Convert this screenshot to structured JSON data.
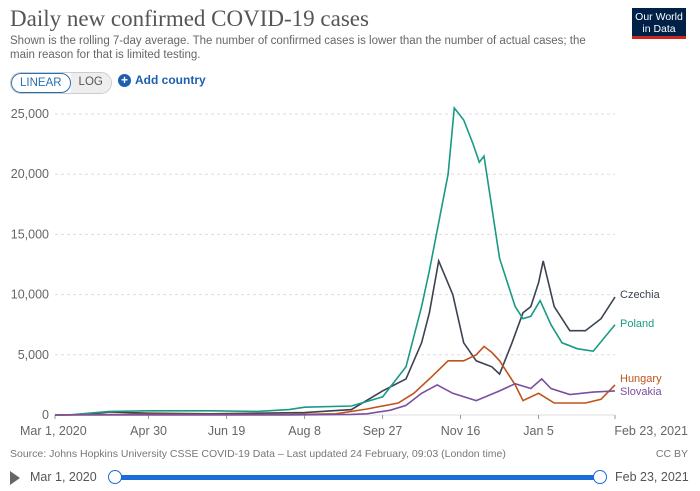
{
  "header": {
    "title": "Daily new confirmed COVID-19 cases",
    "subtitle": "Shown is the rolling 7-day average. The number of confirmed cases is lower than the number of actual cases; the main reason for that is limited testing.",
    "logo": "Our World in Data"
  },
  "controls": {
    "linear": "LINEAR",
    "log": "LOG",
    "add_country": "Add country"
  },
  "footer": {
    "source": "Source: Johns Hopkins University CSSE COVID-19 Data – Last updated 24 February, 09:03 (London time)",
    "license": "CC BY"
  },
  "timeline": {
    "start": "Mar 1, 2020",
    "end": "Feb 23, 2021"
  },
  "chart_data": {
    "type": "line",
    "title": "Daily new confirmed COVID-19 cases",
    "xlabel": "",
    "ylabel": "",
    "x_unit": "days since Mar 1, 2020",
    "xlim": [
      0,
      359
    ],
    "ylim": [
      0,
      25000
    ],
    "yticks": [
      0,
      5000,
      10000,
      15000,
      20000,
      25000
    ],
    "ytick_labels": [
      "0",
      "5,000",
      "10,000",
      "15,000",
      "20,000",
      "25,000"
    ],
    "xticks": [
      0,
      60,
      110,
      160,
      210,
      260,
      310,
      359
    ],
    "xtick_labels": [
      "Mar 1, 2020",
      "Apr 30",
      "Jun 19",
      "Aug 8",
      "Sep 27",
      "Nov 16",
      "Jan 5",
      "Feb 23, 2021"
    ],
    "grid": true,
    "legend": "right-end labels",
    "series": [
      {
        "name": "Czechia",
        "color": "#3b4252",
        "points": [
          [
            0,
            0
          ],
          [
            20,
            30
          ],
          [
            35,
            250
          ],
          [
            60,
            150
          ],
          [
            100,
            100
          ],
          [
            130,
            150
          ],
          [
            160,
            200
          ],
          [
            190,
            450
          ],
          [
            210,
            2000
          ],
          [
            225,
            3000
          ],
          [
            235,
            6000
          ],
          [
            240,
            8500
          ],
          [
            246,
            12800
          ],
          [
            255,
            10000
          ],
          [
            262,
            6000
          ],
          [
            270,
            4500
          ],
          [
            280,
            4000
          ],
          [
            285,
            3400
          ],
          [
            293,
            6000
          ],
          [
            300,
            8500
          ],
          [
            305,
            9000
          ],
          [
            310,
            11000
          ],
          [
            313,
            12800
          ],
          [
            320,
            9000
          ],
          [
            330,
            7000
          ],
          [
            340,
            7000
          ],
          [
            350,
            8000
          ],
          [
            359,
            9800
          ]
        ]
      },
      {
        "name": "Poland",
        "color": "#1a9a85",
        "points": [
          [
            0,
            0
          ],
          [
            10,
            20
          ],
          [
            35,
            300
          ],
          [
            60,
            350
          ],
          [
            100,
            350
          ],
          [
            130,
            300
          ],
          [
            150,
            450
          ],
          [
            160,
            650
          ],
          [
            190,
            750
          ],
          [
            210,
            1500
          ],
          [
            225,
            4000
          ],
          [
            235,
            9000
          ],
          [
            240,
            12000
          ],
          [
            252,
            20000
          ],
          [
            256,
            25500
          ],
          [
            262,
            24500
          ],
          [
            268,
            22500
          ],
          [
            272,
            21000
          ],
          [
            275,
            21500
          ],
          [
            285,
            13000
          ],
          [
            295,
            9000
          ],
          [
            300,
            8000
          ],
          [
            305,
            8200
          ],
          [
            311,
            9500
          ],
          [
            318,
            7500
          ],
          [
            325,
            6000
          ],
          [
            335,
            5500
          ],
          [
            345,
            5300
          ],
          [
            359,
            7500
          ]
        ]
      },
      {
        "name": "Hungary",
        "color": "#c0531b",
        "points": [
          [
            0,
            0
          ],
          [
            30,
            30
          ],
          [
            60,
            60
          ],
          [
            150,
            30
          ],
          [
            180,
            100
          ],
          [
            200,
            500
          ],
          [
            220,
            1000
          ],
          [
            230,
            1800
          ],
          [
            240,
            3000
          ],
          [
            252,
            4500
          ],
          [
            262,
            4500
          ],
          [
            270,
            5000
          ],
          [
            275,
            5700
          ],
          [
            280,
            5200
          ],
          [
            285,
            4500
          ],
          [
            295,
            2500
          ],
          [
            300,
            1200
          ],
          [
            310,
            1800
          ],
          [
            320,
            1000
          ],
          [
            340,
            1000
          ],
          [
            350,
            1300
          ],
          [
            359,
            2500
          ]
        ]
      },
      {
        "name": "Slovakia",
        "color": "#7b4fa0",
        "points": [
          [
            0,
            0
          ],
          [
            30,
            10
          ],
          [
            60,
            10
          ],
          [
            150,
            10
          ],
          [
            190,
            50
          ],
          [
            200,
            100
          ],
          [
            215,
            400
          ],
          [
            225,
            800
          ],
          [
            235,
            1800
          ],
          [
            245,
            2500
          ],
          [
            255,
            1800
          ],
          [
            270,
            1200
          ],
          [
            285,
            2000
          ],
          [
            295,
            2600
          ],
          [
            305,
            2200
          ],
          [
            312,
            3000
          ],
          [
            318,
            2200
          ],
          [
            330,
            1700
          ],
          [
            345,
            1900
          ],
          [
            359,
            2000
          ]
        ]
      }
    ]
  }
}
